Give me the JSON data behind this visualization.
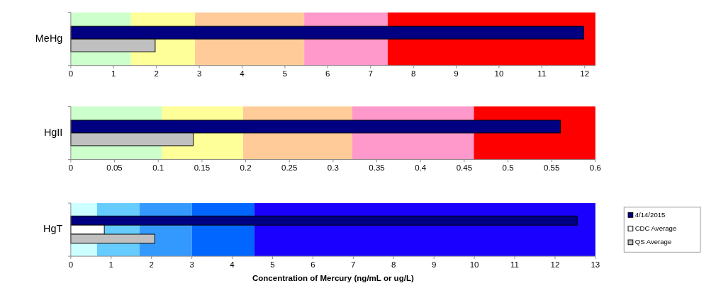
{
  "chart_data": [
    {
      "type": "bar",
      "orientation": "horizontal",
      "categories": [
        "MeHg"
      ],
      "xlim": [
        0,
        12.25
      ],
      "xticks": [
        0,
        1,
        2,
        3,
        4,
        5,
        6,
        7,
        8,
        9,
        10,
        11,
        12
      ],
      "grid": false,
      "legend": false,
      "series": [
        {
          "color": "#000080",
          "values": [
            11.98
          ]
        },
        {
          "color": "#c0c0c0",
          "values": [
            1.97
          ]
        }
      ],
      "bands": [
        {
          "axis": "x",
          "from": 0,
          "to": 1.4,
          "color": "#ccffcc"
        },
        {
          "axis": "x",
          "from": 1.4,
          "to": 2.9,
          "color": "#ffff99"
        },
        {
          "axis": "x",
          "from": 2.9,
          "to": 5.45,
          "color": "#ffcc99"
        },
        {
          "axis": "x",
          "from": 5.45,
          "to": 7.4,
          "color": "#ff99cc"
        },
        {
          "axis": "x",
          "from": 7.4,
          "to": 12.25,
          "color": "#ff0000"
        }
      ]
    },
    {
      "type": "bar",
      "orientation": "horizontal",
      "categories": [
        "HgII"
      ],
      "xlim": [
        0,
        0.6
      ],
      "xticks": [
        0,
        0.05,
        0.1,
        0.15,
        0.2,
        0.25,
        0.3,
        0.35,
        0.4,
        0.45,
        0.5,
        0.55,
        0.6
      ],
      "grid": false,
      "legend": false,
      "series": [
        {
          "color": "#000080",
          "values": [
            0.56
          ]
        },
        {
          "color": "#c0c0c0",
          "values": [
            0.14
          ]
        }
      ],
      "bands": [
        {
          "axis": "x",
          "from": 0,
          "to": 0.104,
          "color": "#ccffcc"
        },
        {
          "axis": "x",
          "from": 0.104,
          "to": 0.197,
          "color": "#ffff99"
        },
        {
          "axis": "x",
          "from": 0.197,
          "to": 0.322,
          "color": "#ffcc99"
        },
        {
          "axis": "x",
          "from": 0.322,
          "to": 0.461,
          "color": "#ff99cc"
        },
        {
          "axis": "x",
          "from": 0.461,
          "to": 0.6,
          "color": "#ff0000"
        }
      ]
    },
    {
      "type": "bar",
      "orientation": "horizontal",
      "categories": [
        "HgT"
      ],
      "xlim": [
        0,
        13
      ],
      "xticks": [
        0,
        1,
        2,
        3,
        4,
        5,
        6,
        7,
        8,
        9,
        10,
        11,
        12,
        13
      ],
      "grid": false,
      "legend": "right",
      "xlabel": "Concentration of Mercury (ng/mL or ug/L)",
      "series": [
        {
          "name": "4/14/2015",
          "color": "#000080",
          "values": [
            12.55
          ]
        },
        {
          "name": "CDC Average",
          "color": "#ffffff",
          "values": [
            0.83
          ]
        },
        {
          "name": "QS Average",
          "color": "#c0c0c0",
          "values": [
            2.08
          ]
        }
      ],
      "bands": [
        {
          "axis": "x",
          "from": 0,
          "to": 0.65,
          "color": "#ccffff"
        },
        {
          "axis": "x",
          "from": 0.65,
          "to": 1.7,
          "color": "#66ccff"
        },
        {
          "axis": "x",
          "from": 1.7,
          "to": 3.0,
          "color": "#3399ff"
        },
        {
          "axis": "x",
          "from": 3.0,
          "to": 4.55,
          "color": "#0066ff"
        },
        {
          "axis": "x",
          "from": 4.55,
          "to": 13,
          "color": "#1a00ff"
        }
      ]
    }
  ]
}
